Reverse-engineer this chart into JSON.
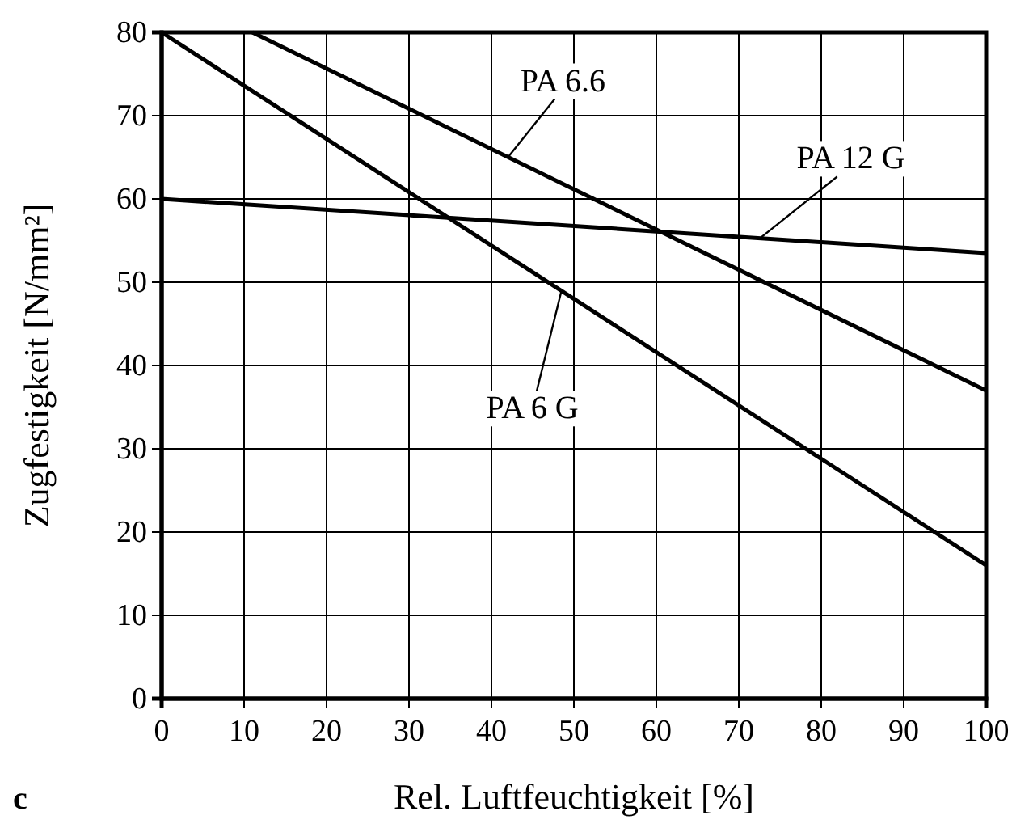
{
  "chart_data": {
    "type": "line",
    "xlabel": "Rel. Luftfeuchtigkeit [%]",
    "ylabel": "Zugfestigkeit [N/mm²]",
    "xlim": [
      0,
      100
    ],
    "xticks": [
      0,
      10,
      20,
      30,
      40,
      50,
      60,
      70,
      80,
      90,
      100
    ],
    "ylim": [
      0,
      80
    ],
    "yticks": [
      0,
      10,
      20,
      30,
      40,
      50,
      60,
      70,
      80
    ],
    "grid": true,
    "marker": "none",
    "line_style": "solid",
    "series": [
      {
        "color": "#000000",
        "x": [
          11,
          100
        ],
        "values": [
          80,
          37
        ]
      },
      {
        "color": "#000000",
        "x": [
          0,
          100
        ],
        "values": [
          60,
          53.5
        ]
      },
      {
        "color": "#000000",
        "x": [
          0,
          100
        ],
        "values": [
          80,
          16
        ]
      }
    ],
    "annotations": [
      {
        "text": "PA 6.6",
        "x": 42,
        "y": 65
      },
      {
        "text": "PA 12 G",
        "x": 72.6,
        "y": 55.3
      },
      {
        "text": "PA 6 G",
        "x": 48.5,
        "y": 49
      },
      "c"
    ]
  }
}
